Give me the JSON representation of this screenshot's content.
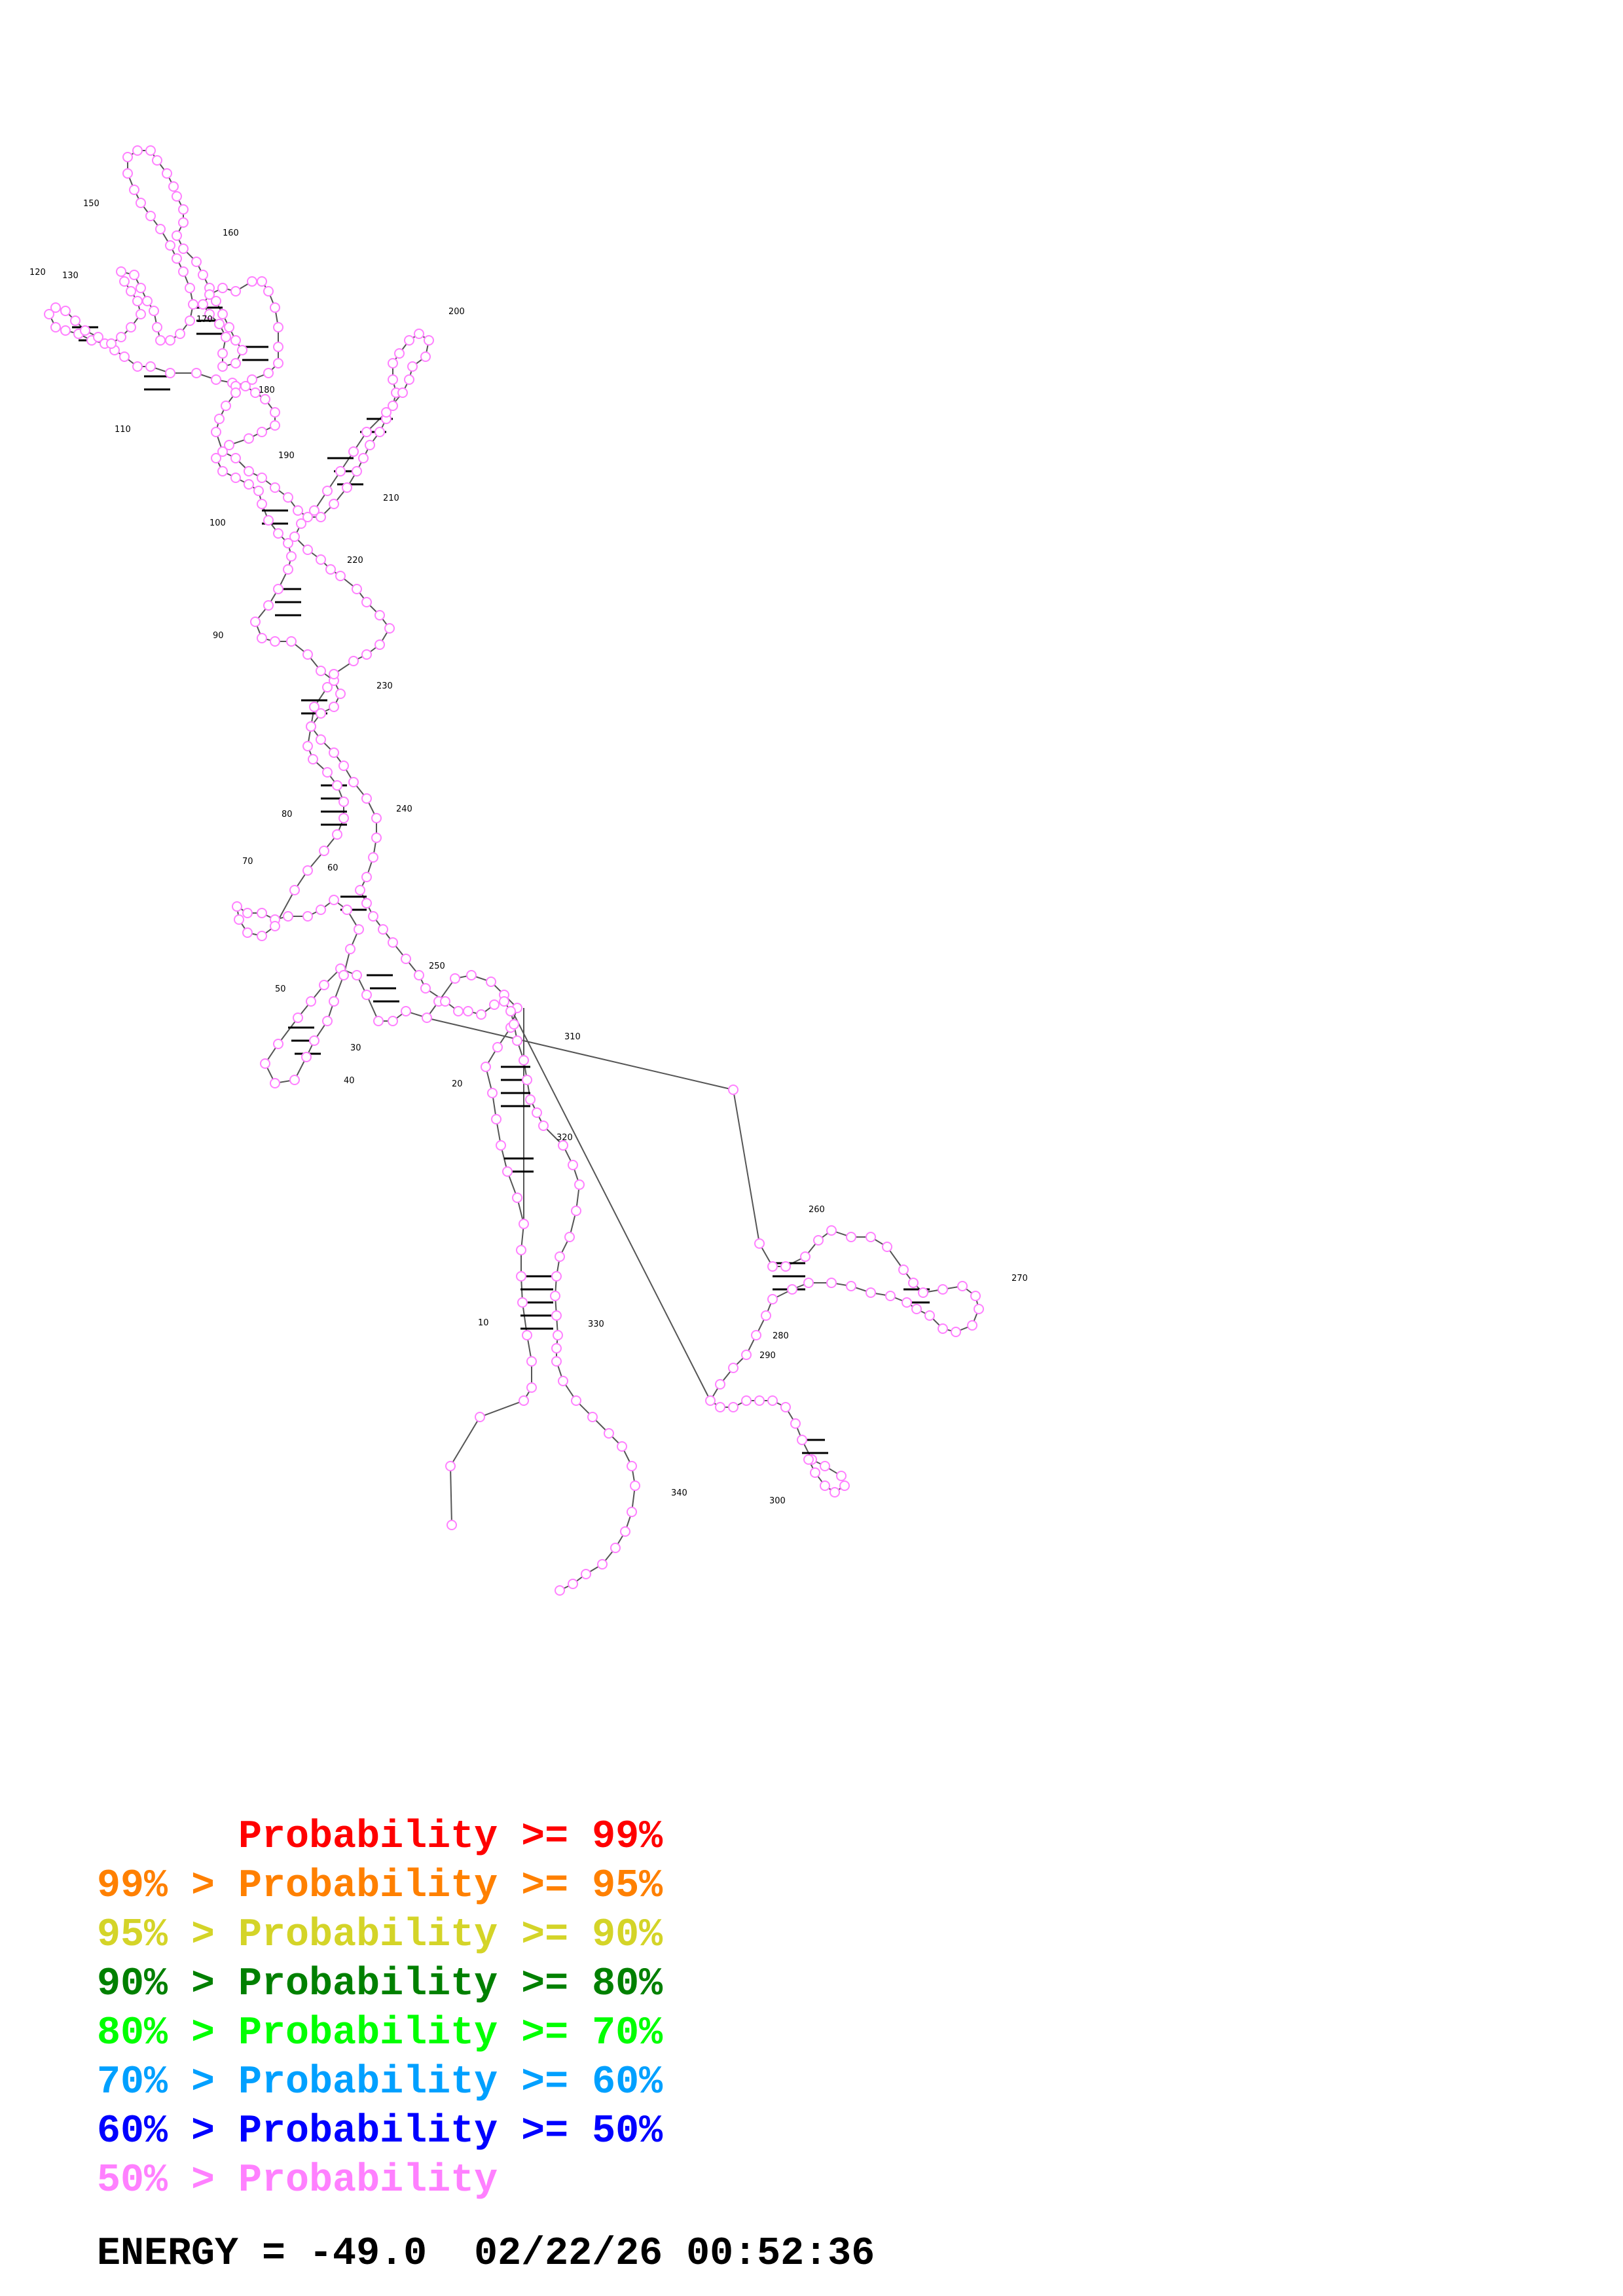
{
  "diagram": {
    "position_labels": [
      "10",
      "20",
      "30",
      "40",
      "50",
      "60",
      "70",
      "80",
      "90",
      "100",
      "110",
      "120",
      "130",
      "150",
      "160",
      "170",
      "180",
      "190",
      "200",
      "210",
      "220",
      "230",
      "240",
      "250",
      "260",
      "270",
      "280",
      "290",
      "300",
      "310",
      "320",
      "330",
      "340"
    ],
    "colors": {
      "p99": "#ff0000",
      "p95": "#ff8000",
      "p90": "#d4d428",
      "p80": "#008000",
      "p70": "#00ff00",
      "p60": "#00a0ff",
      "p50": "#0000ff",
      "low": "#ff80ff"
    }
  },
  "legend": [
    {
      "text": "      Probability >= 99%",
      "color": "#ff0000"
    },
    {
      "text": "99% > Probability >= 95%",
      "color": "#ff8000"
    },
    {
      "text": "95% > Probability >= 90%",
      "color": "#d4d428"
    },
    {
      "text": "90% > Probability >= 80%",
      "color": "#008000"
    },
    {
      "text": "80% > Probability >= 70%",
      "color": "#00ff00"
    },
    {
      "text": "70% > Probability >= 60%",
      "color": "#00a0ff"
    },
    {
      "text": "60% > Probability >= 50%",
      "color": "#0000ff"
    },
    {
      "text": "50% > Probability",
      "color": "#ff80ff"
    }
  ],
  "footer": {
    "energy": "ENERGY = -49.0  02/22/26 00:52:36"
  }
}
